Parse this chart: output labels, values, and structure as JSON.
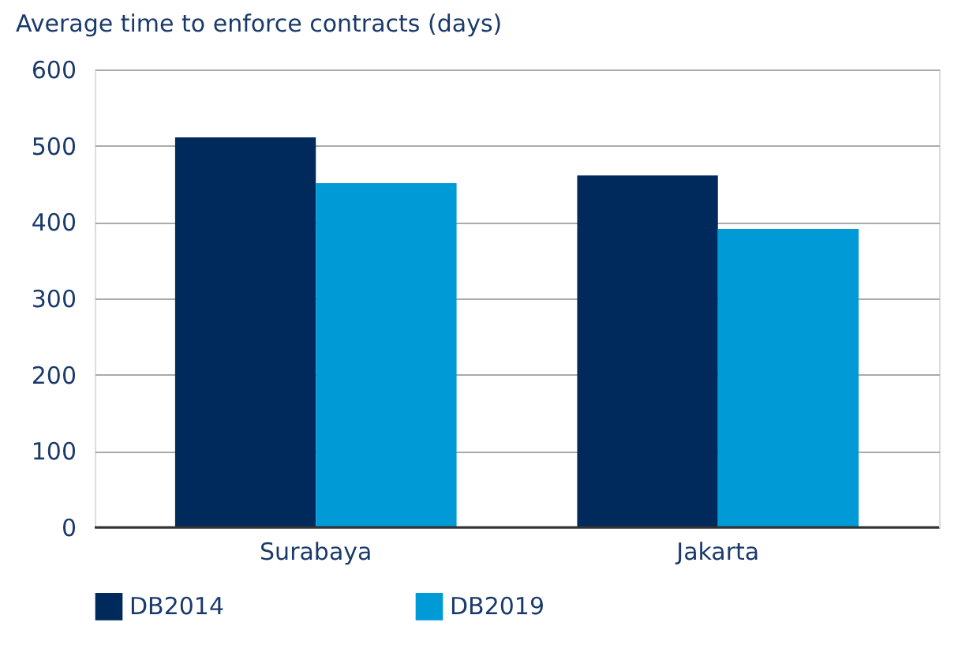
{
  "chart_data": {
    "type": "bar",
    "ylabel": "Average time to enforce contracts (days)",
    "categories": [
      "Surabaya",
      "Jakarta"
    ],
    "series": [
      {
        "name": "DB2014",
        "color": "#002a5c",
        "values": [
          511,
          461
        ]
      },
      {
        "name": "DB2019",
        "color": "#009ad7",
        "values": [
          451,
          391
        ]
      }
    ],
    "ylim": [
      0,
      600
    ],
    "yticks": [
      0,
      100,
      200,
      300,
      400,
      500,
      600
    ],
    "grid": "y",
    "legend": "bottom"
  }
}
